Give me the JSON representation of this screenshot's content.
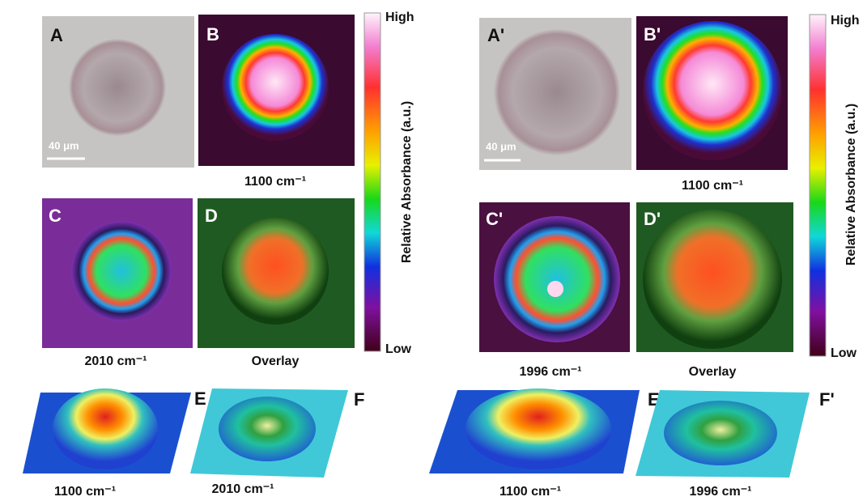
{
  "left": {
    "panels": [
      {
        "label": "A",
        "scale_bar": "40 μm"
      },
      {
        "label": "B",
        "caption": "1100 cm⁻¹"
      },
      {
        "label": "C",
        "caption": "2010 cm⁻¹"
      },
      {
        "label": "D",
        "caption": "Overlay"
      }
    ],
    "colorbar": {
      "high": "High",
      "low": "Low",
      "title": "Relative Absorbance (a.u.)"
    },
    "surfaces": [
      {
        "label": "E",
        "caption": "1100 cm⁻¹"
      },
      {
        "label": "F",
        "caption": "2010 cm⁻¹"
      }
    ]
  },
  "right": {
    "panels": [
      {
        "label": "A'",
        "scale_bar": "40 μm"
      },
      {
        "label": "B'",
        "caption": "1100 cm⁻¹"
      },
      {
        "label": "C'",
        "caption": "1996 cm⁻¹"
      },
      {
        "label": "D'",
        "caption": "Overlay"
      }
    ],
    "colorbar": {
      "high": "High",
      "low": "Low",
      "title": "Relative Absorbance (a.u.)"
    },
    "surfaces": [
      {
        "label": "E'",
        "caption": "1100 cm⁻¹"
      },
      {
        "label": "F'",
        "caption": "1996 cm⁻¹"
      }
    ]
  }
}
